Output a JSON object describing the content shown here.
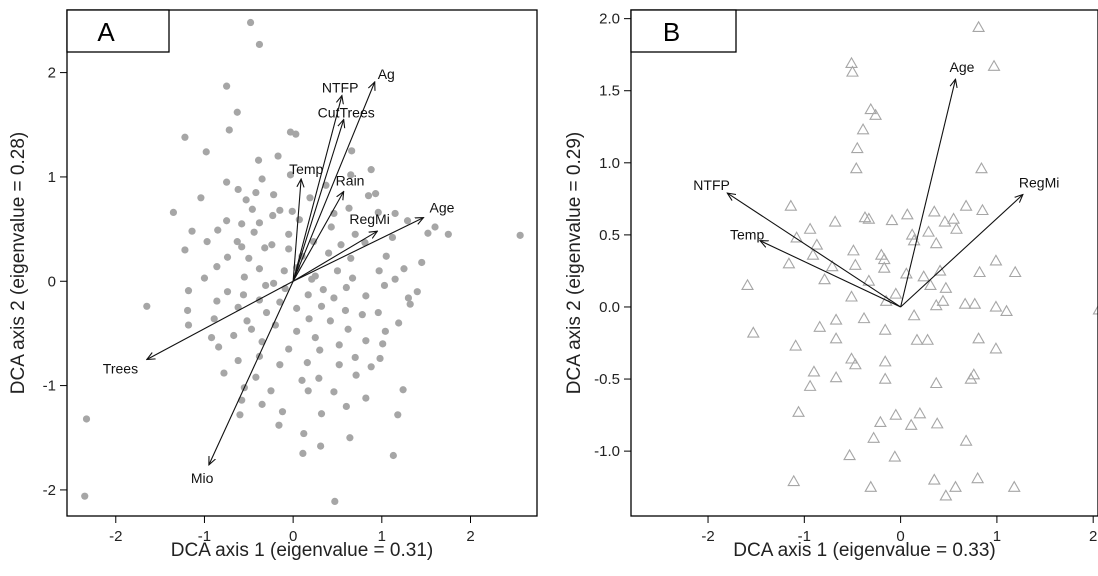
{
  "colors": {
    "points": "#a6a6a6",
    "axes": "#000000",
    "arrows": "#111111",
    "text": "#222222"
  },
  "chart_data": [
    {
      "type": "scatter",
      "panel": "A",
      "marker": "filled-circle",
      "xlabel": "DCA axis 1 (eigenvalue = 0.31)",
      "ylabel": "DCA axis 2 (eigenvalue = 0.28)",
      "xlim": [
        -2.55,
        2.75
      ],
      "ylim": [
        -2.25,
        2.6
      ],
      "xticks": [
        -2,
        -1,
        0,
        1,
        2
      ],
      "xtick_labels": [
        "-2",
        "-1",
        "0",
        "1",
        "2"
      ],
      "yticks": [
        -2,
        -1,
        0,
        1,
        2
      ],
      "ytick_labels": [
        "-2",
        "-1",
        "0",
        "1",
        "2"
      ],
      "vectors": [
        {
          "label": "Ag",
          "x": 0.92,
          "y": 1.91
        },
        {
          "label": "NTFP",
          "x": 0.55,
          "y": 1.78
        },
        {
          "label": "CutTrees",
          "x": 0.57,
          "y": 1.55
        },
        {
          "label": "Temp",
          "x": 0.09,
          "y": 0.98
        },
        {
          "label": "Rain",
          "x": 0.57,
          "y": 0.86
        },
        {
          "label": "RegMi",
          "x": 0.95,
          "y": 0.48
        },
        {
          "label": "Age",
          "x": 1.47,
          "y": 0.61
        },
        {
          "label": "Trees",
          "x": -1.65,
          "y": -0.75
        },
        {
          "label": "Mio",
          "x": -0.95,
          "y": -1.76
        }
      ],
      "points": [
        [
          -0.48,
          2.48
        ],
        [
          -0.38,
          2.27
        ],
        [
          -0.75,
          1.87
        ],
        [
          -0.63,
          1.62
        ],
        [
          -0.72,
          1.45
        ],
        [
          -0.03,
          1.43
        ],
        [
          0.03,
          1.41
        ],
        [
          -1.22,
          1.38
        ],
        [
          -0.17,
          1.2
        ],
        [
          -0.98,
          1.24
        ],
        [
          -0.39,
          1.16
        ],
        [
          -0.03,
          1.02
        ],
        [
          0.88,
          1.07
        ],
        [
          0.65,
          1.02
        ],
        [
          -0.75,
          0.95
        ],
        [
          -0.35,
          0.98
        ],
        [
          -0.62,
          0.88
        ],
        [
          -0.22,
          0.83
        ],
        [
          -1.04,
          0.8
        ],
        [
          0.37,
          0.92
        ],
        [
          0.85,
          0.82
        ],
        [
          0.19,
          0.8
        ],
        [
          -0.53,
          0.78
        ],
        [
          0.93,
          0.84
        ],
        [
          -0.46,
          0.69
        ],
        [
          0.63,
          0.7
        ],
        [
          -0.23,
          0.63
        ],
        [
          -1.35,
          0.66
        ],
        [
          0.96,
          0.66
        ],
        [
          1.15,
          0.65
        ],
        [
          -0.75,
          0.58
        ],
        [
          -0.38,
          0.56
        ],
        [
          0.07,
          0.59
        ],
        [
          -0.01,
          0.67
        ],
        [
          1.29,
          0.58
        ],
        [
          1.52,
          0.46
        ],
        [
          1.6,
          0.52
        ],
        [
          1.75,
          0.45
        ],
        [
          2.56,
          0.44
        ],
        [
          -0.58,
          0.55
        ],
        [
          0.43,
          0.52
        ],
        [
          -1.14,
          0.48
        ],
        [
          -0.85,
          0.49
        ],
        [
          -0.44,
          0.47
        ],
        [
          1.12,
          0.42
        ],
        [
          -0.63,
          0.38
        ],
        [
          -0.97,
          0.38
        ],
        [
          -0.58,
          0.33
        ],
        [
          -0.24,
          0.35
        ],
        [
          -0.32,
          0.32
        ],
        [
          -0.05,
          0.31
        ],
        [
          0.23,
          0.38
        ],
        [
          0.54,
          0.35
        ],
        [
          0.81,
          0.37
        ],
        [
          -1.22,
          0.3
        ],
        [
          -0.74,
          0.23
        ],
        [
          -0.5,
          0.22
        ],
        [
          0.1,
          0.24
        ],
        [
          0.4,
          0.27
        ],
        [
          0.65,
          0.22
        ],
        [
          1.05,
          0.24
        ],
        [
          -0.86,
          0.14
        ],
        [
          -0.38,
          0.12
        ],
        [
          -0.1,
          0.1
        ],
        [
          0.04,
          0.13
        ],
        [
          0.5,
          0.1
        ],
        [
          0.97,
          0.1
        ],
        [
          1.25,
          0.12
        ],
        [
          -0.55,
          0.04
        ],
        [
          0.21,
          0.02
        ],
        [
          0.67,
          0.03
        ],
        [
          1.15,
          0.02
        ],
        [
          1.03,
          -0.04
        ],
        [
          -0.31,
          -0.04
        ],
        [
          -0.09,
          -0.07
        ],
        [
          0.34,
          -0.08
        ],
        [
          0.6,
          -0.06
        ],
        [
          -0.74,
          -0.1
        ],
        [
          -1.18,
          -0.09
        ],
        [
          -0.56,
          -0.13
        ],
        [
          0.17,
          -0.13
        ],
        [
          0.46,
          -0.16
        ],
        [
          0.82,
          -0.14
        ],
        [
          1.3,
          -0.16
        ],
        [
          -0.38,
          -0.18
        ],
        [
          -0.86,
          -0.19
        ],
        [
          -0.15,
          -0.2
        ],
        [
          0.04,
          -0.26
        ],
        [
          0.32,
          -0.24
        ],
        [
          0.59,
          -0.28
        ],
        [
          1.32,
          -0.22
        ],
        [
          -1.19,
          -0.28
        ],
        [
          -0.62,
          -0.25
        ],
        [
          -0.3,
          -0.3
        ],
        [
          0.96,
          -0.3
        ],
        [
          -1.65,
          -0.24
        ],
        [
          -0.89,
          -0.36
        ],
        [
          -0.52,
          -0.38
        ],
        [
          0.18,
          -0.36
        ],
        [
          0.42,
          -0.38
        ],
        [
          0.78,
          -0.32
        ],
        [
          1.19,
          -0.4
        ],
        [
          -1.18,
          -0.42
        ],
        [
          -0.47,
          -0.46
        ],
        [
          -0.2,
          -0.42
        ],
        [
          0.04,
          -0.48
        ],
        [
          0.62,
          -0.46
        ],
        [
          1.04,
          -0.48
        ],
        [
          -0.67,
          -0.52
        ],
        [
          -0.35,
          -0.58
        ],
        [
          0.25,
          -0.54
        ],
        [
          0.52,
          -0.61
        ],
        [
          0.82,
          -0.57
        ],
        [
          -0.84,
          -0.63
        ],
        [
          -0.05,
          -0.65
        ],
        [
          0.3,
          -0.66
        ],
        [
          1.01,
          -0.6
        ],
        [
          -0.38,
          -0.72
        ],
        [
          0.7,
          -0.73
        ],
        [
          -0.62,
          -0.76
        ],
        [
          -0.15,
          -0.8
        ],
        [
          0.16,
          -0.78
        ],
        [
          0.52,
          -0.8
        ],
        [
          0.98,
          -0.74
        ],
        [
          -0.78,
          -0.88
        ],
        [
          -0.42,
          -0.92
        ],
        [
          0.29,
          -0.93
        ],
        [
          0.71,
          -0.9
        ],
        [
          -0.55,
          -1.02
        ],
        [
          -0.25,
          -1.05
        ],
        [
          0.17,
          -1.05
        ],
        [
          0.46,
          -1.06
        ],
        [
          1.24,
          -1.04
        ],
        [
          0.82,
          -1.12
        ],
        [
          -0.58,
          -1.14
        ],
        [
          -0.35,
          -1.18
        ],
        [
          0.6,
          -1.2
        ],
        [
          -0.6,
          -1.28
        ],
        [
          -0.12,
          -1.25
        ],
        [
          0.32,
          -1.27
        ],
        [
          1.18,
          -1.28
        ],
        [
          -0.16,
          -1.38
        ],
        [
          0.12,
          -1.46
        ],
        [
          0.64,
          -1.5
        ],
        [
          0.31,
          -1.58
        ],
        [
          0.11,
          -1.65
        ],
        [
          1.13,
          -1.67
        ],
        [
          -2.33,
          -1.32
        ],
        [
          -2.35,
          -2.06
        ],
        [
          0.47,
          -2.11
        ],
        [
          0.66,
          1.25
        ],
        [
          0.46,
          0.65
        ],
        [
          -0.15,
          0.68
        ],
        [
          -1.0,
          0.03
        ],
        [
          1.4,
          -0.1
        ],
        [
          0.88,
          -0.82
        ],
        [
          -0.92,
          -0.54
        ],
        [
          1.45,
          0.18
        ],
        [
          -0.05,
          0.45
        ],
        [
          0.25,
          0.05
        ],
        [
          -0.22,
          -0.02
        ],
        [
          0.1,
          -0.95
        ],
        [
          -0.42,
          0.85
        ],
        [
          0.7,
          0.45
        ]
      ]
    },
    {
      "type": "scatter",
      "panel": "B",
      "marker": "open-triangle",
      "xlabel": "DCA axis 1 (eigenvalue = 0.33)",
      "ylabel": "DCA axis 2 (eigenvalue = 0.29)",
      "xlim": [
        -2.8,
        2.05
      ],
      "ylim": [
        -1.45,
        2.06
      ],
      "xticks": [
        -2,
        -1,
        0,
        1,
        2
      ],
      "xtick_labels": [
        "-2",
        "-1",
        "0",
        "1",
        "2"
      ],
      "yticks": [
        -1.0,
        -0.5,
        0.0,
        0.5,
        1.0,
        1.5,
        2.0
      ],
      "ytick_labels": [
        "-1.0",
        "-0.5",
        "0.0",
        "0.5",
        "1.0",
        "1.5",
        "2.0"
      ],
      "vectors": [
        {
          "label": "Age",
          "x": 0.57,
          "y": 1.58
        },
        {
          "label": "NTFP",
          "x": -1.8,
          "y": 0.79
        },
        {
          "label": "Temp",
          "x": -1.46,
          "y": 0.46
        },
        {
          "label": "RegMi",
          "x": 1.27,
          "y": 0.78
        }
      ],
      "points": [
        [
          0.81,
          1.94
        ],
        [
          -0.51,
          1.69
        ],
        [
          0.97,
          1.67
        ],
        [
          -0.5,
          1.63
        ],
        [
          -0.31,
          1.37
        ],
        [
          -0.26,
          1.33
        ],
        [
          -0.39,
          1.23
        ],
        [
          -0.45,
          1.1
        ],
        [
          0.84,
          0.96
        ],
        [
          -0.46,
          0.96
        ],
        [
          -1.14,
          0.7
        ],
        [
          -0.09,
          0.6
        ],
        [
          0.35,
          0.66
        ],
        [
          0.07,
          0.64
        ],
        [
          0.68,
          0.7
        ],
        [
          -0.37,
          0.62
        ],
        [
          0.85,
          0.67
        ],
        [
          0.55,
          0.61
        ],
        [
          0.46,
          0.59
        ],
        [
          -0.68,
          0.59
        ],
        [
          -0.33,
          0.61
        ],
        [
          -0.94,
          0.54
        ],
        [
          0.29,
          0.52
        ],
        [
          0.12,
          0.5
        ],
        [
          0.58,
          0.54
        ],
        [
          -1.08,
          0.48
        ],
        [
          -0.87,
          0.43
        ],
        [
          0.37,
          0.44
        ],
        [
          0.14,
          0.46
        ],
        [
          -0.49,
          0.39
        ],
        [
          -0.2,
          0.36
        ],
        [
          -0.17,
          0.33
        ],
        [
          0.99,
          0.32
        ],
        [
          -0.91,
          0.36
        ],
        [
          -0.47,
          0.29
        ],
        [
          -1.16,
          0.3
        ],
        [
          -0.71,
          0.28
        ],
        [
          -0.17,
          0.27
        ],
        [
          0.41,
          0.25
        ],
        [
          1.19,
          0.24
        ],
        [
          0.06,
          0.23
        ],
        [
          0.82,
          0.24
        ],
        [
          0.24,
          0.21
        ],
        [
          -0.79,
          0.19
        ],
        [
          -0.33,
          0.18
        ],
        [
          -1.59,
          0.15
        ],
        [
          0.31,
          0.15
        ],
        [
          0.47,
          0.13
        ],
        [
          -0.05,
          0.09
        ],
        [
          0.44,
          0.04
        ],
        [
          -0.15,
          0.04
        ],
        [
          0.67,
          0.02
        ],
        [
          0.77,
          0.02
        ],
        [
          0.37,
          0.01
        ],
        [
          -0.51,
          0.07
        ],
        [
          0.99,
          0.0
        ],
        [
          2.06,
          -0.02
        ],
        [
          1.1,
          -0.03
        ],
        [
          0.14,
          -0.06
        ],
        [
          -0.38,
          -0.08
        ],
        [
          -0.67,
          -0.09
        ],
        [
          -0.84,
          -0.14
        ],
        [
          -1.53,
          -0.18
        ],
        [
          -0.16,
          -0.16
        ],
        [
          -0.67,
          -0.22
        ],
        [
          0.17,
          -0.23
        ],
        [
          0.28,
          -0.23
        ],
        [
          0.81,
          -0.22
        ],
        [
          -1.09,
          -0.27
        ],
        [
          0.99,
          -0.29
        ],
        [
          -0.51,
          -0.36
        ],
        [
          -0.47,
          -0.4
        ],
        [
          -0.16,
          -0.38
        ],
        [
          -0.9,
          -0.45
        ],
        [
          -0.67,
          -0.49
        ],
        [
          0.37,
          -0.53
        ],
        [
          0.76,
          -0.47
        ],
        [
          0.73,
          -0.5
        ],
        [
          -0.16,
          -0.5
        ],
        [
          -0.94,
          -0.55
        ],
        [
          -0.05,
          -0.75
        ],
        [
          -1.06,
          -0.73
        ],
        [
          0.2,
          -0.74
        ],
        [
          -0.21,
          -0.8
        ],
        [
          0.11,
          -0.82
        ],
        [
          0.38,
          -0.81
        ],
        [
          -0.28,
          -0.91
        ],
        [
          0.68,
          -0.93
        ],
        [
          -0.53,
          -1.03
        ],
        [
          -0.06,
          -1.04
        ],
        [
          0.35,
          -1.2
        ],
        [
          0.8,
          -1.19
        ],
        [
          -1.11,
          -1.21
        ],
        [
          -0.31,
          -1.25
        ],
        [
          0.57,
          -1.25
        ],
        [
          0.47,
          -1.31
        ],
        [
          1.18,
          -1.25
        ]
      ]
    }
  ]
}
